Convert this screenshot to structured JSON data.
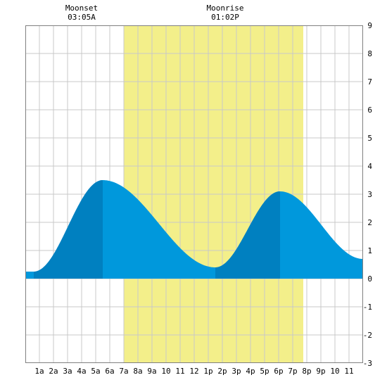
{
  "chart_data": {
    "type": "area",
    "x_unit": "hour",
    "xlim": [
      0,
      24
    ],
    "ylim": [
      -3,
      9
    ],
    "grid": true,
    "x_tick_labels": [
      {
        "x": 1,
        "label": "1a"
      },
      {
        "x": 2,
        "label": "2a"
      },
      {
        "x": 3,
        "label": "3a"
      },
      {
        "x": 4,
        "label": "4a"
      },
      {
        "x": 5,
        "label": "5a"
      },
      {
        "x": 6,
        "label": "6a"
      },
      {
        "x": 7,
        "label": "7a"
      },
      {
        "x": 8,
        "label": "8a"
      },
      {
        "x": 9,
        "label": "9a"
      },
      {
        "x": 10,
        "label": "10"
      },
      {
        "x": 11,
        "label": "11"
      },
      {
        "x": 12,
        "label": "12"
      },
      {
        "x": 13,
        "label": "1p"
      },
      {
        "x": 14,
        "label": "2p"
      },
      {
        "x": 15,
        "label": "3p"
      },
      {
        "x": 16,
        "label": "4p"
      },
      {
        "x": 17,
        "label": "5p"
      },
      {
        "x": 18,
        "label": "6p"
      },
      {
        "x": 19,
        "label": "7p"
      },
      {
        "x": 20,
        "label": "8p"
      },
      {
        "x": 21,
        "label": "9p"
      },
      {
        "x": 22,
        "label": "10"
      },
      {
        "x": 23,
        "label": "11"
      }
    ],
    "y_tick_labels": [
      {
        "y": 9,
        "label": "9"
      },
      {
        "y": 8,
        "label": "8"
      },
      {
        "y": 7,
        "label": "7"
      },
      {
        "y": 6,
        "label": "6"
      },
      {
        "y": 5,
        "label": "5"
      },
      {
        "y": 4,
        "label": "4"
      },
      {
        "y": 3,
        "label": "3"
      },
      {
        "y": 2,
        "label": "2"
      },
      {
        "y": 1,
        "label": "1"
      },
      {
        "y": 0,
        "label": "0"
      },
      {
        "y": -1,
        "label": "-1"
      },
      {
        "y": -2,
        "label": "-2"
      },
      {
        "y": -3,
        "label": "-3"
      }
    ],
    "daylight": {
      "start": 7,
      "end": 19.75
    },
    "tide_extremes": [
      {
        "x": 0.6,
        "y": 0.25,
        "kind": "low"
      },
      {
        "x": 5.5,
        "y": 3.5,
        "kind": "high"
      },
      {
        "x": 13.5,
        "y": 0.4,
        "kind": "low"
      },
      {
        "x": 18.1,
        "y": 3.1,
        "kind": "high"
      },
      {
        "x": 24,
        "y": 0.7,
        "kind": "end"
      }
    ],
    "annotations": [
      {
        "x": 4,
        "title": "Moonset",
        "time": "03:05A"
      },
      {
        "x": 14.2,
        "title": "Moonrise",
        "time": "01:02P"
      }
    ],
    "colors": {
      "background": "#ffffff",
      "daylight": "#f3ef8a",
      "grid": "#c8c8c8",
      "tide": "#0098dc",
      "tide_highlight": "#0080c0"
    }
  }
}
